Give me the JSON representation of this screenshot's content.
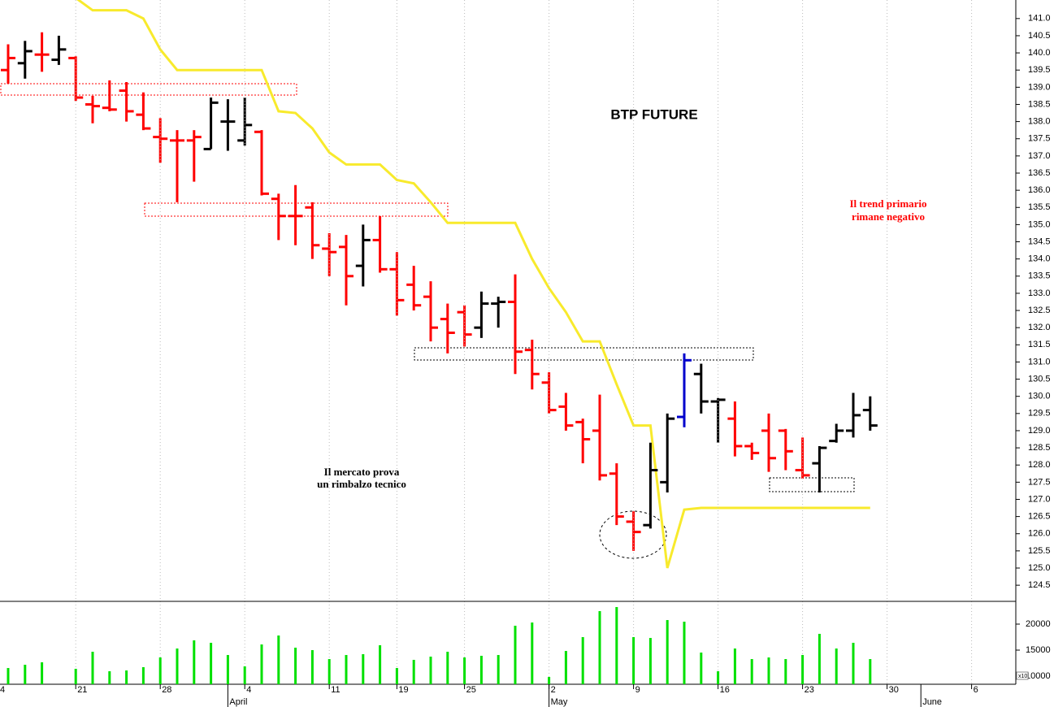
{
  "chart_data": [
    {
      "type": "ohlc",
      "title": "BTP FUTURE",
      "annotations": [
        "Il trend primario",
        "rimane negativo",
        "Il mercato prova",
        "un rimbalzo tecnico"
      ],
      "open": [
        null,
        139.5,
        139.7,
        139.95,
        139.8,
        139.85,
        138.5,
        138.4,
        138.9,
        138.2,
        137.55,
        137.45,
        137.45,
        137.2,
        138.0,
        137.45,
        137.7,
        135.75,
        135.25,
        135.5,
        134.3,
        134.35,
        133.8,
        134.55,
        133.7,
        133.25,
        132.9,
        132.25,
        132.45,
        132.0,
        132.7,
        132.75,
        131.35,
        130.4,
        129.7,
        129.25,
        129.0,
        127.75,
        126.35,
        126.25,
        127.5,
        129.4,
        130.65,
        129.85,
        129.35,
        128.55,
        129.0,
        129.0,
        127.85,
        128.05,
        128.7,
        129.0,
        129.6,
        null,
        null,
        null,
        null,
        null,
        null,
        null,
        null
      ],
      "high": [
        null,
        140.25,
        140.35,
        140.6,
        140.5,
        139.9,
        138.75,
        139.2,
        139.15,
        138.85,
        138.1,
        137.75,
        137.75,
        138.7,
        138.65,
        138.7,
        137.75,
        135.9,
        136.15,
        135.65,
        134.75,
        134.7,
        135.0,
        135.25,
        134.2,
        133.8,
        133.35,
        132.7,
        132.65,
        133.05,
        132.9,
        133.55,
        131.65,
        130.7,
        130.1,
        129.35,
        130.05,
        128.05,
        126.65,
        128.65,
        129.5,
        131.25,
        130.95,
        129.95,
        129.85,
        128.65,
        129.5,
        129.05,
        128.8,
        128.55,
        129.2,
        130.1,
        130.0,
        null,
        null,
        null,
        null,
        null,
        null,
        null,
        null
      ],
      "low": [
        null,
        139.1,
        139.25,
        139.45,
        139.65,
        138.6,
        137.95,
        138.3,
        138.0,
        137.75,
        136.8,
        135.65,
        136.25,
        137.2,
        137.15,
        137.3,
        135.85,
        134.55,
        134.4,
        134.0,
        133.5,
        132.65,
        133.2,
        133.6,
        132.35,
        132.5,
        131.6,
        131.25,
        131.45,
        131.7,
        132.0,
        130.65,
        130.2,
        129.5,
        129.0,
        128.05,
        127.55,
        126.25,
        125.5,
        126.15,
        127.2,
        129.1,
        129.5,
        128.65,
        128.25,
        128.15,
        127.8,
        127.85,
        127.6,
        127.2,
        128.65,
        128.8,
        129.0,
        null,
        null,
        null,
        null,
        null,
        null,
        null,
        null
      ],
      "close": [
        null,
        139.85,
        140.05,
        139.95,
        140.1,
        138.7,
        138.45,
        138.35,
        138.3,
        137.8,
        137.5,
        137.45,
        137.55,
        138.55,
        138.0,
        137.9,
        135.9,
        135.25,
        135.25,
        134.4,
        134.2,
        133.5,
        134.55,
        133.7,
        132.8,
        132.65,
        132.0,
        131.85,
        131.8,
        132.7,
        132.75,
        131.3,
        130.65,
        129.6,
        129.15,
        128.75,
        127.7,
        126.5,
        126.05,
        127.85,
        129.35,
        131.05,
        129.85,
        129.9,
        128.55,
        128.35,
        128.2,
        128.4,
        127.7,
        128.5,
        129.0,
        129.45,
        129.15,
        null,
        null,
        null,
        null,
        null,
        null,
        null,
        null
      ],
      "colors": [
        null,
        "#ff0000",
        "#000000",
        "#ff0000",
        "#000000",
        "#ff0000",
        "#ff0000",
        "#ff0000",
        "#ff0000",
        "#ff0000",
        "#ff0000",
        "#ff0000",
        "#ff0000",
        "#000000",
        "#000000",
        "#000000",
        "#ff0000",
        "#ff0000",
        "#ff0000",
        "#ff0000",
        "#ff0000",
        "#ff0000",
        "#000000",
        "#ff0000",
        "#ff0000",
        "#ff0000",
        "#ff0000",
        "#ff0000",
        "#ff0000",
        "#000000",
        "#000000",
        "#ff0000",
        "#ff0000",
        "#ff0000",
        "#ff0000",
        "#ff0000",
        "#ff0000",
        "#ff0000",
        "#ff0000",
        "#000000",
        "#000000",
        "#0000cc",
        "#000000",
        "#000000",
        "#ff0000",
        "#ff0000",
        "#ff0000",
        "#ff0000",
        "#ff0000",
        "#000000",
        "#000000",
        "#000000",
        "#000000",
        null,
        null,
        null,
        null,
        null,
        null,
        null,
        null
      ],
      "line": {
        "color": "#f8ea2c",
        "values": [
          null,
          null,
          null,
          null,
          null,
          141.6,
          141.24,
          141.24,
          141.24,
          141.0,
          140.1,
          139.5,
          139.5,
          139.5,
          139.5,
          139.5,
          139.5,
          138.3,
          138.25,
          137.8,
          137.1,
          136.75,
          136.75,
          136.75,
          136.3,
          136.2,
          135.65,
          135.05,
          135.05,
          135.05,
          135.05,
          135.05,
          134.0,
          133.15,
          132.45,
          131.6,
          131.6,
          130.35,
          129.15,
          129.15,
          125.0,
          126.7,
          126.75,
          126.75,
          126.75,
          126.75,
          126.75,
          126.75,
          126.75,
          126.75,
          126.75,
          126.75,
          126.75,
          null,
          null,
          null,
          null,
          null,
          null,
          null,
          null
        ]
      },
      "ylim": [
        124.03,
        141.54
      ],
      "yticks": [
        {
          "value": 124.5,
          "label": "124.5"
        },
        {
          "value": 125,
          "label": "125.0"
        },
        {
          "value": 125.5,
          "label": "125.5"
        },
        {
          "value": 126,
          "label": "126.0"
        },
        {
          "value": 126.5,
          "label": "126.5"
        },
        {
          "value": 127,
          "label": "127.0"
        },
        {
          "value": 127.5,
          "label": "127.5"
        },
        {
          "value": 128,
          "label": "128.0"
        },
        {
          "value": 128.5,
          "label": "128.5"
        },
        {
          "value": 129,
          "label": "129.0"
        },
        {
          "value": 129.5,
          "label": "129.5"
        },
        {
          "value": 130,
          "label": "130.0"
        },
        {
          "value": 130.5,
          "label": "130.5"
        },
        {
          "value": 131,
          "label": "131.0"
        },
        {
          "value": 131.5,
          "label": "131.5"
        },
        {
          "value": 132,
          "label": "132.0"
        },
        {
          "value": 132.5,
          "label": "132.5"
        },
        {
          "value": 133,
          "label": "133.0"
        },
        {
          "value": 133.5,
          "label": "133.5"
        },
        {
          "value": 134,
          "label": "134.0"
        },
        {
          "value": 134.5,
          "label": "134.5"
        },
        {
          "value": 135,
          "label": "135.0"
        },
        {
          "value": 135.5,
          "label": "135.5"
        },
        {
          "value": 136,
          "label": "136.0"
        },
        {
          "value": 136.5,
          "label": "136.5"
        },
        {
          "value": 137,
          "label": "137.0"
        },
        {
          "value": 137.5,
          "label": "137.5"
        },
        {
          "value": 138,
          "label": "138.0"
        },
        {
          "value": 138.5,
          "label": "138.5"
        },
        {
          "value": 139,
          "label": "139.0"
        },
        {
          "value": 139.5,
          "label": "139.5"
        },
        {
          "value": 140,
          "label": "140.0"
        },
        {
          "value": 140.5,
          "label": "140.5"
        },
        {
          "value": 141,
          "label": "141.0"
        }
      ]
    },
    {
      "type": "bar",
      "color": "#00e000",
      "multiplier_label": "x10",
      "categories": [
        "4",
        null,
        null,
        null,
        null,
        "21",
        null,
        null,
        null,
        null,
        "28",
        null,
        null,
        null,
        null,
        "4",
        null,
        null,
        null,
        null,
        "11",
        null,
        null,
        null,
        "19",
        null,
        null,
        null,
        "25",
        null,
        null,
        null,
        null,
        "2",
        null,
        null,
        null,
        null,
        "9",
        null,
        null,
        null,
        null,
        "16",
        null,
        null,
        null,
        null,
        "23",
        null,
        null,
        null,
        null,
        "30",
        null,
        null,
        null,
        null,
        "6",
        null,
        null
      ],
      "month_categories": [
        null,
        null,
        null,
        null,
        null,
        null,
        null,
        null,
        null,
        null,
        null,
        null,
        null,
        null,
        "April",
        null,
        null,
        null,
        null,
        null,
        null,
        null,
        null,
        null,
        null,
        null,
        null,
        null,
        null,
        null,
        null,
        null,
        null,
        "May",
        null,
        null,
        null,
        null,
        null,
        null,
        null,
        null,
        null,
        null,
        null,
        null,
        null,
        null,
        null,
        null,
        null,
        null,
        null,
        null,
        null,
        "June",
        null,
        null,
        null,
        null,
        null
      ],
      "values": [
        null,
        11560,
        12190,
        12660,
        null,
        11410,
        14690,
        10940,
        11090,
        11720,
        13590,
        15310,
        16880,
        16410,
        14060,
        11880,
        16090,
        17810,
        15470,
        15000,
        13280,
        14060,
        14220,
        15940,
        11560,
        13130,
        13750,
        14690,
        13590,
        13910,
        14060,
        19690,
        20310,
        9840,
        14840,
        17500,
        22500,
        23280,
        17500,
        17340,
        20780,
        20470,
        14530,
        10940,
        15310,
        13280,
        13590,
        13280,
        14060,
        18130,
        15310,
        16410,
        13280,
        null,
        null,
        null,
        null,
        null,
        null,
        null,
        null
      ],
      "ylim": [
        8440,
        24220
      ],
      "yticks": [
        10000,
        15000,
        20000
      ]
    }
  ]
}
